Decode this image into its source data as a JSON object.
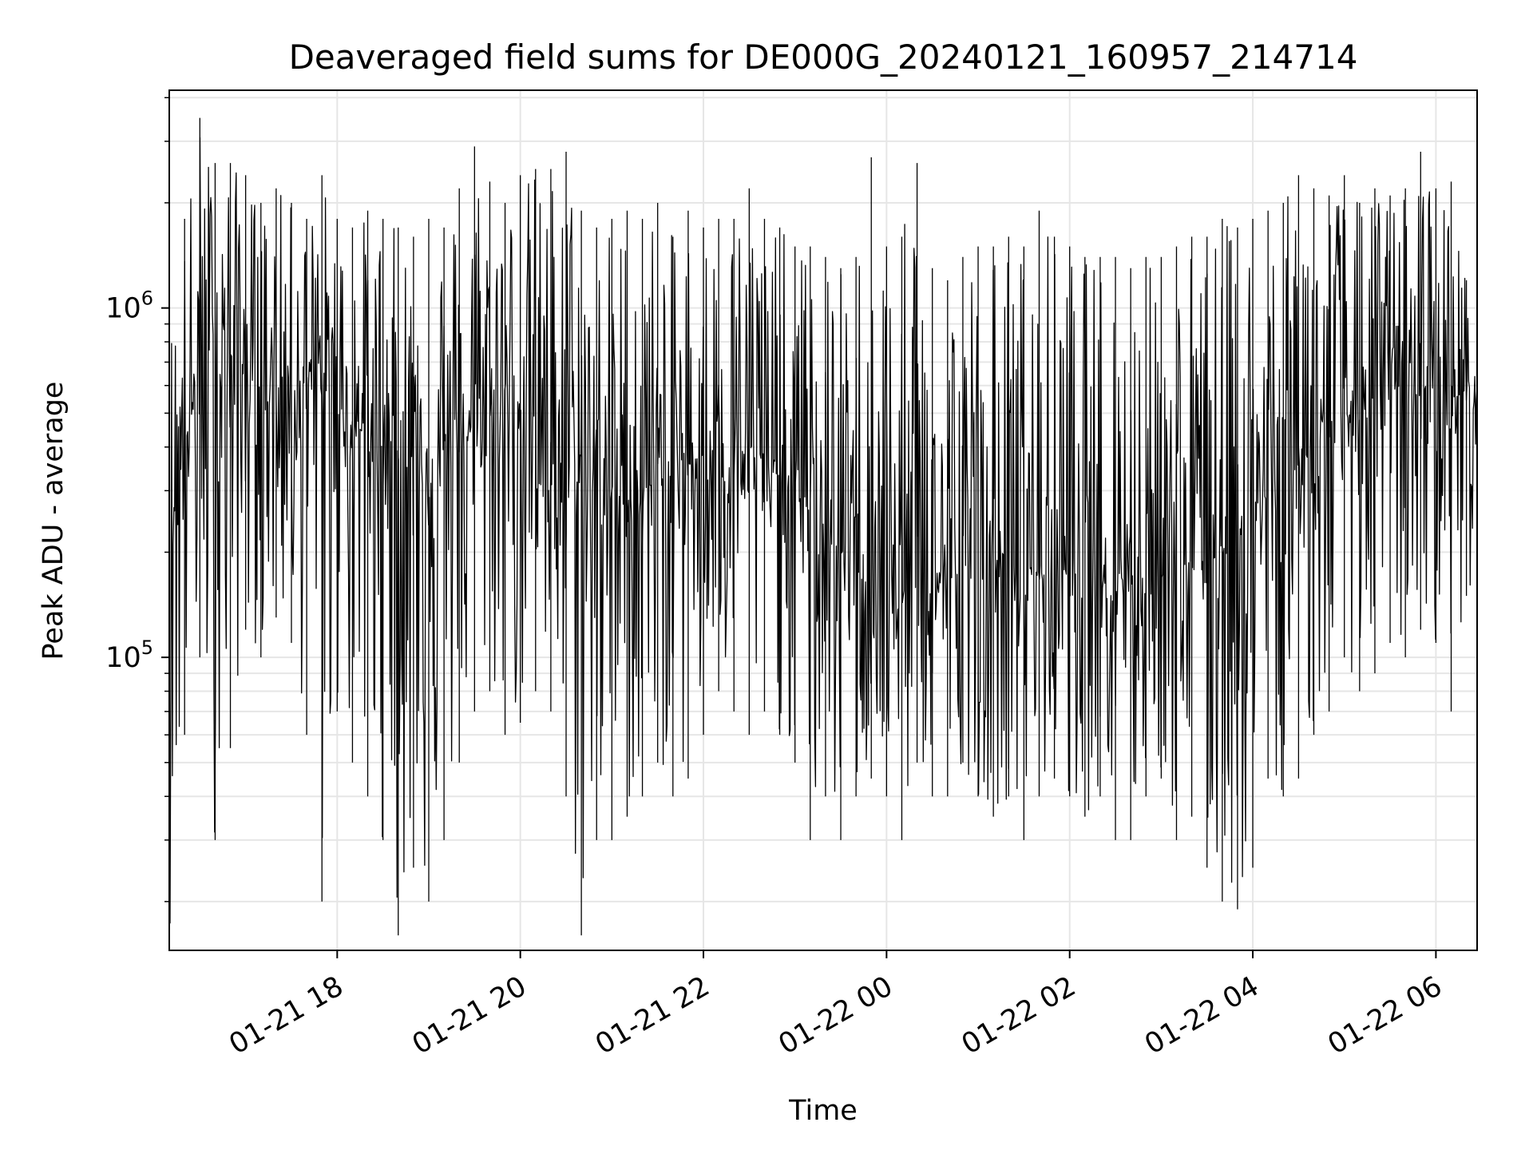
{
  "chart_data": {
    "type": "line",
    "title": "Deaveraged field sums for DE000G_20240121_160957_214714",
    "xlabel": "Time",
    "ylabel": "Peak ADU - average",
    "yscale": "log",
    "ylim": [
      14500,
      4200000
    ],
    "xlim": [
      "2024-01-21 16:09:57",
      "2024-01-22 06:27:00"
    ],
    "grid": true,
    "line_color": "#000000",
    "grid_color": "#e6e6e6",
    "x_ticks": [
      {
        "value": "2024-01-21 18:00",
        "label": "01-21 18"
      },
      {
        "value": "2024-01-21 20:00",
        "label": "01-21 20"
      },
      {
        "value": "2024-01-21 22:00",
        "label": "01-21 22"
      },
      {
        "value": "2024-01-22 00:00",
        "label": "01-22 00"
      },
      {
        "value": "2024-01-22 02:00",
        "label": "01-22 02"
      },
      {
        "value": "2024-01-22 04:00",
        "label": "01-22 04"
      },
      {
        "value": "2024-01-22 06:00",
        "label": "01-22 06"
      }
    ],
    "y_ticks": [
      {
        "value": 100000,
        "label": "10^5",
        "base": "10",
        "exp": "5"
      },
      {
        "value": 1000000,
        "label": "10^6",
        "base": "10",
        "exp": "6"
      }
    ],
    "series": [
      {
        "x": [
          "2024-01-21 16:10",
          "2024-01-21 16:20",
          "2024-01-21 16:30",
          "2024-01-21 16:40",
          "2024-01-21 16:50",
          "2024-01-21 17:00",
          "2024-01-21 17:10",
          "2024-01-21 17:20",
          "2024-01-21 17:30",
          "2024-01-21 17:40",
          "2024-01-21 17:50",
          "2024-01-21 18:00",
          "2024-01-21 18:10",
          "2024-01-21 18:20",
          "2024-01-21 18:30",
          "2024-01-21 18:40",
          "2024-01-21 18:50",
          "2024-01-21 19:00",
          "2024-01-21 19:10",
          "2024-01-21 19:20",
          "2024-01-21 19:30",
          "2024-01-21 19:40",
          "2024-01-21 19:50",
          "2024-01-21 20:00",
          "2024-01-21 20:10",
          "2024-01-21 20:20",
          "2024-01-21 20:30",
          "2024-01-21 20:40",
          "2024-01-21 20:50",
          "2024-01-21 21:00",
          "2024-01-21 21:10",
          "2024-01-21 21:20",
          "2024-01-21 21:30",
          "2024-01-21 21:40",
          "2024-01-21 21:50",
          "2024-01-21 22:00",
          "2024-01-21 22:10",
          "2024-01-21 22:20",
          "2024-01-21 22:30",
          "2024-01-21 22:40",
          "2024-01-21 22:50",
          "2024-01-21 23:00",
          "2024-01-21 23:10",
          "2024-01-21 23:20",
          "2024-01-21 23:30",
          "2024-01-21 23:40",
          "2024-01-21 23:50",
          "2024-01-22 00:00",
          "2024-01-22 00:10",
          "2024-01-22 00:20",
          "2024-01-22 00:30",
          "2024-01-22 00:40",
          "2024-01-22 00:50",
          "2024-01-22 01:00",
          "2024-01-22 01:10",
          "2024-01-22 01:20",
          "2024-01-22 01:30",
          "2024-01-22 01:40",
          "2024-01-22 01:50",
          "2024-01-22 02:00",
          "2024-01-22 02:10",
          "2024-01-22 02:20",
          "2024-01-22 02:30",
          "2024-01-22 02:40",
          "2024-01-22 02:50",
          "2024-01-22 03:00",
          "2024-01-22 03:10",
          "2024-01-22 03:20",
          "2024-01-22 03:30",
          "2024-01-22 03:40",
          "2024-01-22 03:50",
          "2024-01-22 04:00",
          "2024-01-22 04:10",
          "2024-01-22 04:20",
          "2024-01-22 04:30",
          "2024-01-22 04:40",
          "2024-01-22 04:50",
          "2024-01-22 05:00",
          "2024-01-22 05:10",
          "2024-01-22 05:20",
          "2024-01-22 05:30",
          "2024-01-22 05:40",
          "2024-01-22 05:50",
          "2024-01-22 06:00",
          "2024-01-22 06:10",
          "2024-01-22 06:20"
        ],
        "median": [
          260000,
          420000,
          600000,
          680000,
          700000,
          640000,
          600000,
          560000,
          600000,
          620000,
          580000,
          520000,
          470000,
          430000,
          400000,
          390000,
          380000,
          370000,
          360000,
          400000,
          460000,
          540000,
          560000,
          540000,
          480000,
          400000,
          340000,
          320000,
          300000,
          290000,
          280000,
          300000,
          320000,
          340000,
          360000,
          380000,
          400000,
          400000,
          380000,
          360000,
          330000,
          300000,
          260000,
          220000,
          200000,
          190000,
          185000,
          175000,
          165000,
          160000,
          165000,
          170000,
          175000,
          180000,
          185000,
          185000,
          180000,
          175000,
          175000,
          180000,
          185000,
          185000,
          180000,
          175000,
          170000,
          175000,
          185000,
          190000,
          195000,
          210000,
          230000,
          260000,
          290000,
          320000,
          360000,
          400000,
          440000,
          480000,
          520000,
          560000,
          580000,
          600000,
          600000,
          580000,
          560000,
          560000
        ],
        "high": [
          900000,
          1800000,
          3500000,
          2600000,
          2600000,
          2400000,
          2000000,
          2200000,
          2000000,
          1800000,
          2400000,
          1800000,
          1700000,
          1900000,
          1800000,
          1700000,
          1600000,
          1800000,
          1700000,
          2200000,
          2900000,
          2300000,
          2000000,
          2400000,
          2500000,
          2500000,
          2800000,
          1900000,
          1700000,
          1800000,
          1900000,
          1800000,
          2000000,
          1600000,
          1900000,
          1700000,
          1800000,
          1800000,
          2200000,
          1800000,
          1700000,
          1500000,
          1500000,
          1400000,
          1300000,
          1400000,
          2700000,
          1500000,
          1600000,
          2600000,
          1300000,
          1200000,
          1400000,
          1500000,
          1500000,
          1600000,
          1500000,
          1900000,
          1600000,
          1500000,
          1400000,
          1400000,
          1400000,
          1300000,
          1400000,
          1400000,
          1500000,
          1600000,
          1600000,
          1800000,
          1700000,
          1800000,
          1900000,
          2000000,
          2400000,
          2200000,
          2100000,
          2400000,
          2000000,
          2200000,
          2100000,
          2200000,
          2800000,
          2200000,
          2300000,
          1200000
        ],
        "low": [
          16000,
          60000,
          100000,
          30000,
          55000,
          120000,
          100000,
          130000,
          110000,
          60000,
          20000,
          70000,
          50000,
          40000,
          30000,
          16000,
          25000,
          20000,
          30000,
          50000,
          70000,
          80000,
          60000,
          65000,
          80000,
          70000,
          40000,
          16000,
          30000,
          30000,
          35000,
          40000,
          50000,
          40000,
          45000,
          60000,
          80000,
          70000,
          60000,
          70000,
          60000,
          50000,
          30000,
          40000,
          30000,
          40000,
          45000,
          40000,
          30000,
          50000,
          40000,
          40000,
          50000,
          40000,
          35000,
          40000,
          30000,
          40000,
          45000,
          40000,
          35000,
          40000,
          30000,
          30000,
          40000,
          45000,
          30000,
          35000,
          25000,
          20000,
          19000,
          25000,
          45000,
          40000,
          45000,
          60000,
          70000,
          100000,
          80000,
          90000,
          110000,
          100000,
          120000,
          110000,
          70000,
          150000
        ]
      }
    ]
  }
}
